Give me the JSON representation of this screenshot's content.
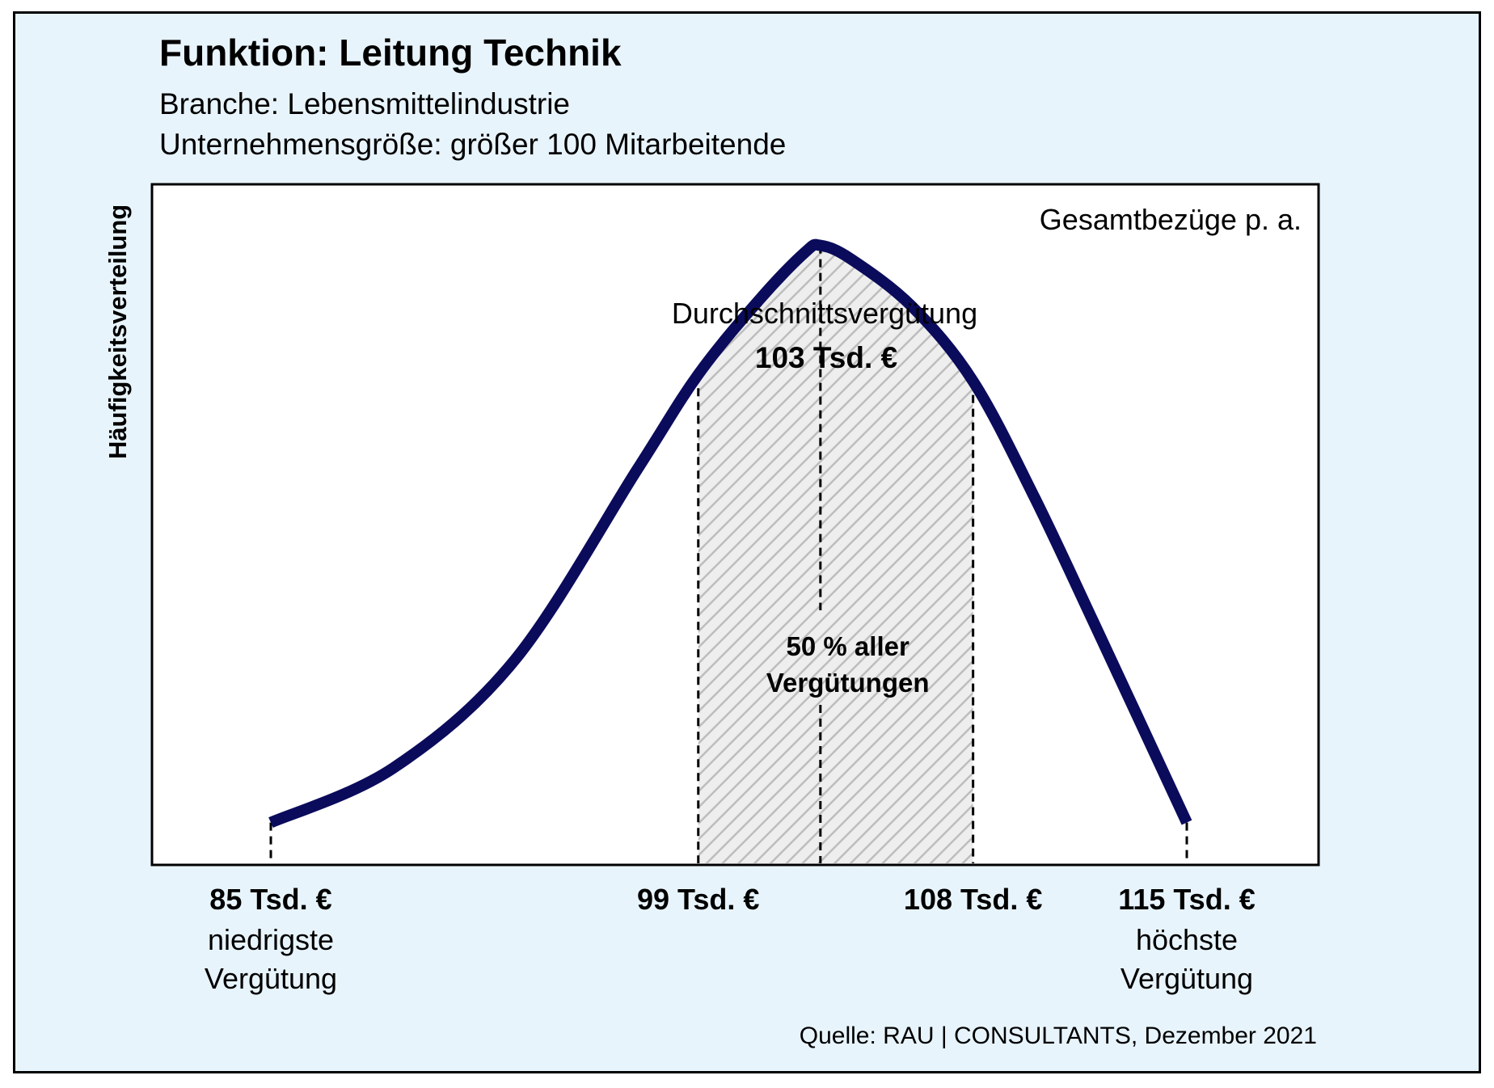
{
  "header": {
    "title": "Funktion: Leitung Technik",
    "industry": "Branche: Lebensmittelindustrie",
    "company_size": "Unternehmensgröße: größer 100 Mitarbeitende"
  },
  "source": "Quelle: RAU | CONSULTANTS, Dezember 2021",
  "colors": {
    "curve": "#0b0b5c",
    "frame_bg": "#e8f4fc",
    "plot_bg": "#ffffff",
    "hatch": "#bdbdbd"
  },
  "chart_data": {
    "type": "area",
    "ylabel": "Häufigkeitsverteilung",
    "xlabel": "Gesamtbezüge p. a.",
    "grid": false,
    "curve": {
      "x": [
        85,
        89,
        93,
        97,
        99,
        101,
        102.5,
        103,
        104,
        106,
        108,
        110,
        112,
        115
      ],
      "y": [
        0.06,
        0.14,
        0.3,
        0.58,
        0.72,
        0.83,
        0.9,
        0.91,
        0.89,
        0.82,
        0.71,
        0.54,
        0.35,
        0.06
      ]
    },
    "markers": [
      {
        "x": 85,
        "label": "85 Tsd. €",
        "note": [
          "niedrigste",
          "Vergütung"
        ]
      },
      {
        "x": 99,
        "label": "99 Tsd. €",
        "note": []
      },
      {
        "x": 108,
        "label": "108 Tsd. €",
        "note": []
      },
      {
        "x": 115,
        "label": "115 Tsd. €",
        "note": [
          "höchste",
          "Vergütung"
        ]
      }
    ],
    "average": {
      "x": 103,
      "title": "Durchschnittsvergütung",
      "value_label": "103 Tsd. €"
    },
    "shaded_range": {
      "from": 99,
      "to": 108,
      "label": [
        "50 % aller",
        "Vergütungen"
      ]
    }
  }
}
